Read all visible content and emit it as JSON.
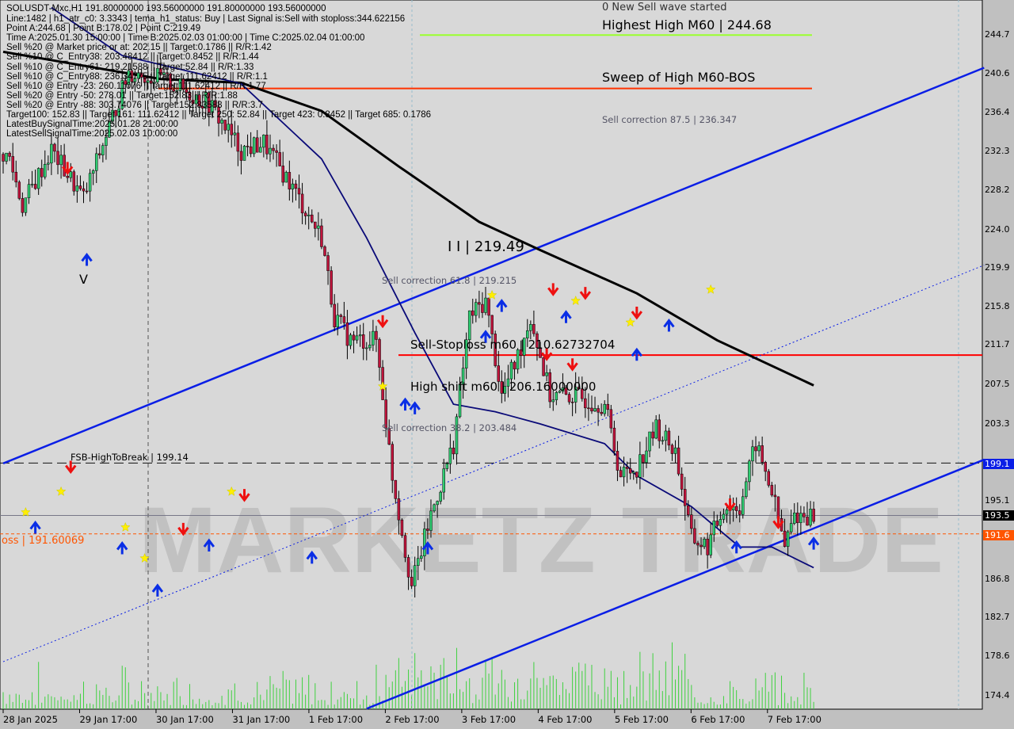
{
  "header": {
    "symbol_line": "SOLUSDT-Mxc,H1  191.80000000 193.56000000 191.80000000 193.56000000",
    "overlay_title": "0 New Sell wave started",
    "info_lines": [
      "Line:1482 | h1_atr_c0: 3.3343 | tema_h1_status: Buy | Last Signal is:Sell with stoploss:344.622156",
      "Point A:244.68 | Point B:178.02 | Point C:219.49",
      "Time A:2025.01.30 15:00:00 | Time B:2025.02.03 01:00:00 | Time C:2025.02.04 01:00:00",
      "Sell %20 @ Market price or at: 202.15 || Target:0.1786 || R/R:1.42",
      "Sell %10 @ C_Entry38: 203.48412 || Target:0.8452 || R/R:1.44",
      "Sell %10 @ C_Entry61: 219.21588 || Target:52.84 || R/R:1.33",
      "Sell %10 @ C_Entry88: 236.34775 || Target:111.62412 || R/R:1.1",
      "Sell %10 @ Entry -23: 260.11076 || Target:111.62412 || R/R:1.77",
      "Sell %20 @ Entry -50: 278.01 || Target:152.83 || R/R:1.88",
      "Sell %20 @ Entry -88: 303.74076 || Target:152.83588 || R/R:3.7",
      "Target100: 152.83 || Target 161: 111.62412 || Target 250: 52.84 || Target 423: 0.8452 || Target 685: 0.1786",
      "LatestBuySignalTime:2025.01.28 21:00:00",
      "LatestSellSignalTime:2025.02.03 10:00:00"
    ]
  },
  "annotations": {
    "highest_high": "Highest High   M60 | 244.68",
    "sweep": "Sweep of High   M60-BOS",
    "sell_corr_875": "Sell correction 87.5 | 236.347",
    "point_c": "I I | 219.49",
    "sell_corr_618": "Sell correction 61.8 | 219.215",
    "sell_stoploss": "Sell-Stoploss m60 | 210.62732704",
    "high_shift": "High shift m60 | 206.16000000",
    "sell_corr_382": "Sell correction 38.2 | 203.484",
    "fsb": "FSB-HighToBreak | 199.14",
    "stoploss_left": "oss | 191.60069",
    "v_mark": "V",
    "watermark": "MARKETZ TRADE"
  },
  "price_axis": {
    "ticks": [
      "244.7",
      "240.6",
      "236.4",
      "232.3",
      "228.2",
      "224.0",
      "219.9",
      "215.8",
      "211.7",
      "207.5",
      "203.3",
      "195.1",
      "186.8",
      "182.7",
      "178.6",
      "174.4"
    ],
    "tick_values": [
      244.7,
      240.6,
      236.4,
      232.3,
      228.2,
      224.0,
      219.9,
      215.8,
      211.7,
      207.5,
      203.3,
      195.1,
      186.8,
      182.7,
      178.6,
      174.4
    ],
    "box_fsb": "199.1",
    "box_current": "193.5",
    "box_stop": "191.6"
  },
  "time_axis": [
    "28 Jan 2025",
    "29 Jan 17:00",
    "30 Jan 17:00",
    "31 Jan 17:00",
    "1 Feb 17:00",
    "2 Feb 17:00",
    "3 Feb 17:00",
    "4 Feb 17:00",
    "5 Feb 17:00",
    "6 Feb 17:00",
    "7 Feb 17:00"
  ],
  "colors": {
    "bg": "#d8d8d8",
    "bull": "#2ecc71",
    "bear": "#c0143c",
    "channel": "#0a1ee6",
    "ma_slow": "#000000",
    "ma_fast": "#0a0a78",
    "stoploss": "#ff0000",
    "highest": "#9aff2e",
    "sweep": "#ff3300",
    "orange": "#ff5500"
  },
  "chart_data": {
    "type": "candlestick",
    "symbol": "SOLUSDT-Mxc",
    "timeframe": "H1",
    "ylim": [
      172.5,
      248.5
    ],
    "close_path": [
      [
        0,
        232
      ],
      [
        2,
        231.5
      ],
      [
        6,
        226.5
      ],
      [
        15,
        232.4
      ],
      [
        25,
        227.3
      ],
      [
        32,
        234
      ],
      [
        39,
        240.8
      ],
      [
        49,
        240
      ],
      [
        64,
        237.4
      ],
      [
        74,
        232.4
      ],
      [
        81,
        233.2
      ],
      [
        89,
        229
      ],
      [
        99,
        223.1
      ],
      [
        103,
        214.7
      ],
      [
        108,
        212.2
      ],
      [
        116,
        212.2
      ],
      [
        121,
        197.8
      ],
      [
        127,
        186
      ],
      [
        133,
        193.6
      ],
      [
        140,
        201.2
      ],
      [
        145,
        214.7
      ],
      [
        150,
        216.4
      ],
      [
        155,
        206.3
      ],
      [
        160,
        210.5
      ],
      [
        164,
        214.7
      ],
      [
        170,
        206.3
      ],
      [
        177,
        206.3
      ],
      [
        187,
        205.4
      ],
      [
        192,
        197.8
      ],
      [
        197,
        198.7
      ],
      [
        203,
        202.9
      ],
      [
        209,
        200.4
      ],
      [
        214,
        191.1
      ],
      [
        219,
        190.2
      ],
      [
        224,
        194.5
      ],
      [
        229,
        194.5
      ],
      [
        234,
        201.2
      ],
      [
        239,
        196.1
      ],
      [
        243,
        190.2
      ],
      [
        246,
        193.6
      ],
      [
        252,
        193.56
      ]
    ],
    "last_bar": 252,
    "levels": {
      "highest_high": 244.68,
      "sweep_high": 239.0,
      "sell_stoploss": 210.63,
      "fsb_high_to_break": 199.14,
      "current": 193.56,
      "stoploss": 191.6
    },
    "channel_upper": [
      [
        0,
        199.1
      ],
      [
        305,
        241.2
      ]
    ],
    "channel_lower": [
      [
        113,
        173.0
      ],
      [
        305,
        199.5
      ]
    ],
    "channel_mid": [
      [
        0,
        178.0
      ],
      [
        305,
        220.2
      ]
    ],
    "ma_slow": [
      [
        0,
        242.9
      ],
      [
        49,
        240
      ],
      [
        74,
        239.6
      ],
      [
        99,
        236.6
      ],
      [
        123,
        230.7
      ],
      [
        148,
        224.8
      ],
      [
        167,
        221.8
      ],
      [
        197,
        217.2
      ],
      [
        222,
        212.2
      ],
      [
        252,
        207.4
      ]
    ],
    "ma_fast": [
      [
        15,
        247.6
      ],
      [
        37,
        242.5
      ],
      [
        74,
        239.5
      ],
      [
        99,
        231.5
      ],
      [
        113,
        223.1
      ],
      [
        128,
        213.0
      ],
      [
        140,
        205.4
      ],
      [
        153,
        204.6
      ],
      [
        167,
        203.3
      ],
      [
        187,
        201.2
      ],
      [
        197,
        197.8
      ],
      [
        214,
        194.5
      ],
      [
        229,
        190.2
      ],
      [
        239,
        190.2
      ],
      [
        252,
        188.0
      ]
    ],
    "buy_arrows": [
      [
        26,
        220.8
      ],
      [
        10,
        192.3
      ],
      [
        37,
        190.1
      ],
      [
        48,
        185.6
      ],
      [
        64,
        190.4
      ],
      [
        96,
        189.1
      ],
      [
        132,
        190.1
      ],
      [
        125,
        205.4
      ],
      [
        128,
        205.0
      ],
      [
        150,
        212.6
      ],
      [
        155,
        215.9
      ],
      [
        175,
        214.7
      ],
      [
        207,
        213.8
      ],
      [
        197,
        210.7
      ],
      [
        252,
        190.6
      ],
      [
        228,
        190.2
      ]
    ],
    "sell_arrows": [
      [
        20,
        230.5
      ],
      [
        21,
        198.7
      ],
      [
        75,
        195.7
      ],
      [
        56,
        192.1
      ],
      [
        118,
        214.2
      ],
      [
        171,
        217.6
      ],
      [
        181,
        217.2
      ],
      [
        197,
        215.1
      ],
      [
        177,
        209.6
      ],
      [
        226,
        194.7
      ],
      [
        241,
        192.8
      ],
      [
        169,
        210.7
      ]
    ],
    "stars": [
      [
        7,
        193.9
      ],
      [
        18,
        196.1
      ],
      [
        38,
        192.3
      ],
      [
        44,
        189.0
      ],
      [
        71,
        196.1
      ],
      [
        220,
        217.6
      ],
      [
        178,
        216.4
      ],
      [
        195,
        214.1
      ],
      [
        152,
        217.0
      ],
      [
        118,
        207.3
      ]
    ]
  }
}
